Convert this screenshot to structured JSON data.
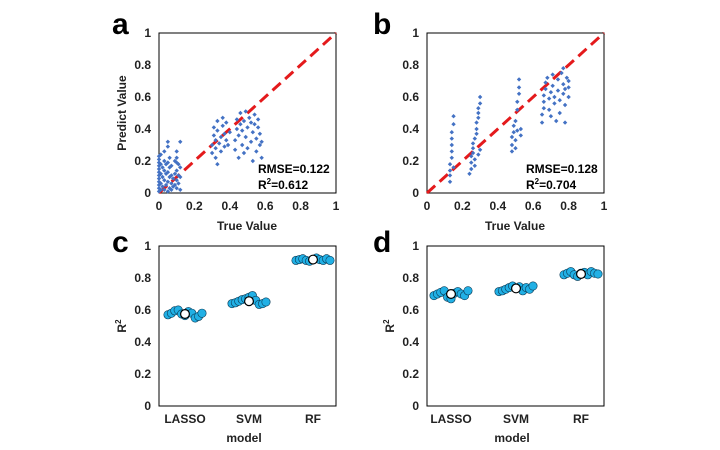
{
  "figure": {
    "colors": {
      "scatter_point": "#4472c4",
      "diagonal": "#e41a1c",
      "r2_point": "#21b0e5",
      "r2_mean_fill": "#ffffff",
      "axis": "#000000"
    }
  },
  "chart_data": [
    {
      "id": "a",
      "label": "a",
      "type": "scatter",
      "xlabel": "True Value",
      "ylabel": "Predict Value",
      "xlim": [
        0,
        1
      ],
      "ylim": [
        0,
        1
      ],
      "xticks": [
        "0",
        "0.2",
        "0.4",
        "0.6",
        "0.8",
        "1"
      ],
      "yticks": [
        "0",
        "0.2",
        "0.4",
        "0.6",
        "0.8",
        "1"
      ],
      "diagonal": true,
      "annotations": {
        "rmse": "RMSE=0.122",
        "r2_prefix": "R",
        "r2_sup": "2",
        "r2_value": "=0.612"
      },
      "points": [
        [
          0,
          0.01
        ],
        [
          0,
          0.03
        ],
        [
          0,
          0.05
        ],
        [
          0,
          0.07
        ],
        [
          0,
          0.09
        ],
        [
          0,
          0.11
        ],
        [
          0,
          0.13
        ],
        [
          0,
          0.15
        ],
        [
          0,
          0.17
        ],
        [
          0,
          0.19
        ],
        [
          0,
          0.21
        ],
        [
          0,
          0.23
        ],
        [
          0.01,
          0.02
        ],
        [
          0.01,
          0.06
        ],
        [
          0.01,
          0.12
        ],
        [
          0.01,
          0.18
        ],
        [
          0.01,
          0.24
        ],
        [
          0.02,
          0.04
        ],
        [
          0.02,
          0.1
        ],
        [
          0.02,
          0.16
        ],
        [
          0.03,
          0.02
        ],
        [
          0.03,
          0.08
        ],
        [
          0.03,
          0.14
        ],
        [
          0.03,
          0.2
        ],
        [
          0.03,
          0.26
        ],
        [
          0.04,
          0.05
        ],
        [
          0.04,
          0.12
        ],
        [
          0.04,
          0.18
        ],
        [
          0.05,
          0.01
        ],
        [
          0.05,
          0.07
        ],
        [
          0.05,
          0.13
        ],
        [
          0.05,
          0.19
        ],
        [
          0.05,
          0.29
        ],
        [
          0.05,
          0.32
        ],
        [
          0.06,
          0.03
        ],
        [
          0.06,
          0.1
        ],
        [
          0.06,
          0.16
        ],
        [
          0.06,
          0.22
        ],
        [
          0.07,
          0.02
        ],
        [
          0.07,
          0.06
        ],
        [
          0.07,
          0.11
        ],
        [
          0.07,
          0.17
        ],
        [
          0.08,
          0.04
        ],
        [
          0.08,
          0.09
        ],
        [
          0.09,
          0.05
        ],
        [
          0.09,
          0.12
        ],
        [
          0.09,
          0.2
        ],
        [
          0.1,
          0.03
        ],
        [
          0.1,
          0.08
        ],
        [
          0.1,
          0.14
        ],
        [
          0.1,
          0.19
        ],
        [
          0.1,
          0.22
        ],
        [
          0.1,
          0.26
        ],
        [
          0.11,
          0.06
        ],
        [
          0.11,
          0.11
        ],
        [
          0.12,
          0.02
        ],
        [
          0.12,
          0.1
        ],
        [
          0.12,
          0.16
        ],
        [
          0.12,
          0.32
        ],
        [
          0.11,
          0.18
        ],
        [
          0.3,
          0.25
        ],
        [
          0.3,
          0.3
        ],
        [
          0.31,
          0.36
        ],
        [
          0.31,
          0.41
        ],
        [
          0.32,
          0.28
        ],
        [
          0.32,
          0.33
        ],
        [
          0.32,
          0.22
        ],
        [
          0.33,
          0.18
        ],
        [
          0.33,
          0.39
        ],
        [
          0.33,
          0.45
        ],
        [
          0.34,
          0.31
        ],
        [
          0.35,
          0.26
        ],
        [
          0.35,
          0.35
        ],
        [
          0.36,
          0.42
        ],
        [
          0.36,
          0.47
        ],
        [
          0.37,
          0.29
        ],
        [
          0.37,
          0.37
        ],
        [
          0.38,
          0.33
        ],
        [
          0.38,
          0.44
        ],
        [
          0.39,
          0.3
        ],
        [
          0.4,
          0.38
        ],
        [
          0.43,
          0.27
        ],
        [
          0.43,
          0.33
        ],
        [
          0.44,
          0.4
        ],
        [
          0.44,
          0.46
        ],
        [
          0.45,
          0.22
        ],
        [
          0.45,
          0.36
        ],
        [
          0.46,
          0.43
        ],
        [
          0.46,
          0.5
        ],
        [
          0.47,
          0.3
        ],
        [
          0.47,
          0.39
        ],
        [
          0.48,
          0.25
        ],
        [
          0.48,
          0.45
        ],
        [
          0.49,
          0.35
        ],
        [
          0.49,
          0.51
        ],
        [
          0.5,
          0.28
        ],
        [
          0.5,
          0.41
        ],
        [
          0.51,
          0.47
        ],
        [
          0.52,
          0.32
        ],
        [
          0.52,
          0.44
        ],
        [
          0.53,
          0.2
        ],
        [
          0.53,
          0.38
        ],
        [
          0.54,
          0.43
        ],
        [
          0.54,
          0.49
        ],
        [
          0.55,
          0.26
        ],
        [
          0.55,
          0.34
        ],
        [
          0.56,
          0.41
        ],
        [
          0.56,
          0.46
        ],
        [
          0.57,
          0.3
        ],
        [
          0.57,
          0.37
        ],
        [
          0.58,
          0.22
        ],
        [
          0.58,
          0.32
        ]
      ]
    },
    {
      "id": "b",
      "label": "b",
      "type": "scatter",
      "xlabel": "True Value",
      "ylabel": "",
      "xlim": [
        0,
        1
      ],
      "ylim": [
        0,
        1
      ],
      "xticks": [
        "0",
        "0.2",
        "0.4",
        "0.6",
        "0.8",
        "1"
      ],
      "yticks": [
        "0",
        "0.2",
        "0.4",
        "0.6",
        "0.8",
        "1"
      ],
      "diagonal": true,
      "annotations": {
        "rmse": "RMSE=0.128",
        "r2_prefix": "R",
        "r2_sup": "2",
        "r2_value": "=0.704"
      },
      "points": [
        [
          0.13,
          0.07
        ],
        [
          0.13,
          0.11
        ],
        [
          0.13,
          0.14
        ],
        [
          0.13,
          0.18
        ],
        [
          0.14,
          0.22
        ],
        [
          0.14,
          0.26
        ],
        [
          0.14,
          0.3
        ],
        [
          0.14,
          0.34
        ],
        [
          0.14,
          0.38
        ],
        [
          0.15,
          0.43
        ],
        [
          0.15,
          0.48
        ],
        [
          0.15,
          0.16
        ],
        [
          0.24,
          0.12
        ],
        [
          0.25,
          0.15
        ],
        [
          0.25,
          0.19
        ],
        [
          0.25,
          0.23
        ],
        [
          0.26,
          0.25
        ],
        [
          0.26,
          0.28
        ],
        [
          0.26,
          0.31
        ],
        [
          0.27,
          0.34
        ],
        [
          0.27,
          0.21
        ],
        [
          0.27,
          0.17
        ],
        [
          0.28,
          0.37
        ],
        [
          0.28,
          0.4
        ],
        [
          0.28,
          0.44
        ],
        [
          0.29,
          0.47
        ],
        [
          0.29,
          0.5
        ],
        [
          0.29,
          0.53
        ],
        [
          0.3,
          0.56
        ],
        [
          0.3,
          0.6
        ],
        [
          0.3,
          0.27
        ],
        [
          0.29,
          0.24
        ],
        [
          0.48,
          0.26
        ],
        [
          0.48,
          0.3
        ],
        [
          0.48,
          0.35
        ],
        [
          0.49,
          0.38
        ],
        [
          0.49,
          0.42
        ],
        [
          0.5,
          0.45
        ],
        [
          0.5,
          0.28
        ],
        [
          0.5,
          0.33
        ],
        [
          0.51,
          0.39
        ],
        [
          0.51,
          0.52
        ],
        [
          0.51,
          0.57
        ],
        [
          0.52,
          0.62
        ],
        [
          0.52,
          0.66
        ],
        [
          0.52,
          0.71
        ],
        [
          0.53,
          0.4
        ],
        [
          0.53,
          0.36
        ],
        [
          0.65,
          0.44
        ],
        [
          0.65,
          0.49
        ],
        [
          0.66,
          0.53
        ],
        [
          0.66,
          0.57
        ],
        [
          0.66,
          0.61
        ],
        [
          0.67,
          0.65
        ],
        [
          0.67,
          0.69
        ],
        [
          0.68,
          0.72
        ],
        [
          0.69,
          0.52
        ],
        [
          0.69,
          0.59
        ],
        [
          0.7,
          0.63
        ],
        [
          0.7,
          0.48
        ],
        [
          0.71,
          0.67
        ],
        [
          0.71,
          0.74
        ],
        [
          0.72,
          0.56
        ],
        [
          0.72,
          0.6
        ],
        [
          0.73,
          0.45
        ],
        [
          0.74,
          0.64
        ],
        [
          0.74,
          0.71
        ],
        [
          0.75,
          0.5
        ],
        [
          0.75,
          0.58
        ],
        [
          0.76,
          0.75
        ],
        [
          0.77,
          0.62
        ],
        [
          0.77,
          0.68
        ],
        [
          0.77,
          0.78
        ],
        [
          0.78,
          0.44
        ],
        [
          0.78,
          0.55
        ],
        [
          0.78,
          0.65
        ],
        [
          0.79,
          0.72
        ],
        [
          0.8,
          0.6
        ],
        [
          0.8,
          0.7
        ],
        [
          0.8,
          0.66
        ]
      ]
    },
    {
      "id": "c",
      "label": "c",
      "type": "scatter",
      "xlabel": "model",
      "ylabel": "R",
      "ylabel_sup": "2",
      "categories": [
        "LASSO",
        "SVM",
        "RF"
      ],
      "ylim": [
        0,
        1
      ],
      "yticks": [
        "0",
        "0.2",
        "0.4",
        "0.6",
        "0.8",
        "1"
      ],
      "series": [
        {
          "name": "LASSO",
          "values": [
            0.57,
            0.58,
            0.595,
            0.6,
            0.575,
            0.565,
            0.59,
            0.58,
            0.55,
            0.56,
            0.58
          ],
          "mean": 0.575
        },
        {
          "name": "SVM",
          "values": [
            0.64,
            0.645,
            0.655,
            0.665,
            0.67,
            0.68,
            0.69,
            0.66,
            0.635,
            0.64,
            0.65
          ],
          "mean": 0.655
        },
        {
          "name": "RF",
          "values": [
            0.91,
            0.915,
            0.92,
            0.91,
            0.905,
            0.915,
            0.925,
            0.915,
            0.91,
            0.92,
            0.91
          ],
          "mean": 0.915
        }
      ]
    },
    {
      "id": "d",
      "label": "d",
      "type": "scatter",
      "xlabel": "model",
      "ylabel": "R",
      "ylabel_sup": "2",
      "categories": [
        "LASSO",
        "SVM",
        "RF"
      ],
      "ylim": [
        0,
        1
      ],
      "yticks": [
        "0",
        "0.2",
        "0.4",
        "0.6",
        "0.8",
        "1"
      ],
      "series": [
        {
          "name": "LASSO",
          "values": [
            0.69,
            0.7,
            0.71,
            0.72,
            0.68,
            0.67,
            0.705,
            0.715,
            0.7,
            0.69,
            0.72
          ],
          "mean": 0.7
        },
        {
          "name": "SVM",
          "values": [
            0.715,
            0.72,
            0.73,
            0.74,
            0.75,
            0.735,
            0.745,
            0.72,
            0.74,
            0.73,
            0.75
          ],
          "mean": 0.735
        },
        {
          "name": "RF",
          "values": [
            0.82,
            0.83,
            0.84,
            0.82,
            0.81,
            0.83,
            0.835,
            0.82,
            0.84,
            0.83,
            0.825
          ],
          "mean": 0.825
        }
      ]
    }
  ]
}
